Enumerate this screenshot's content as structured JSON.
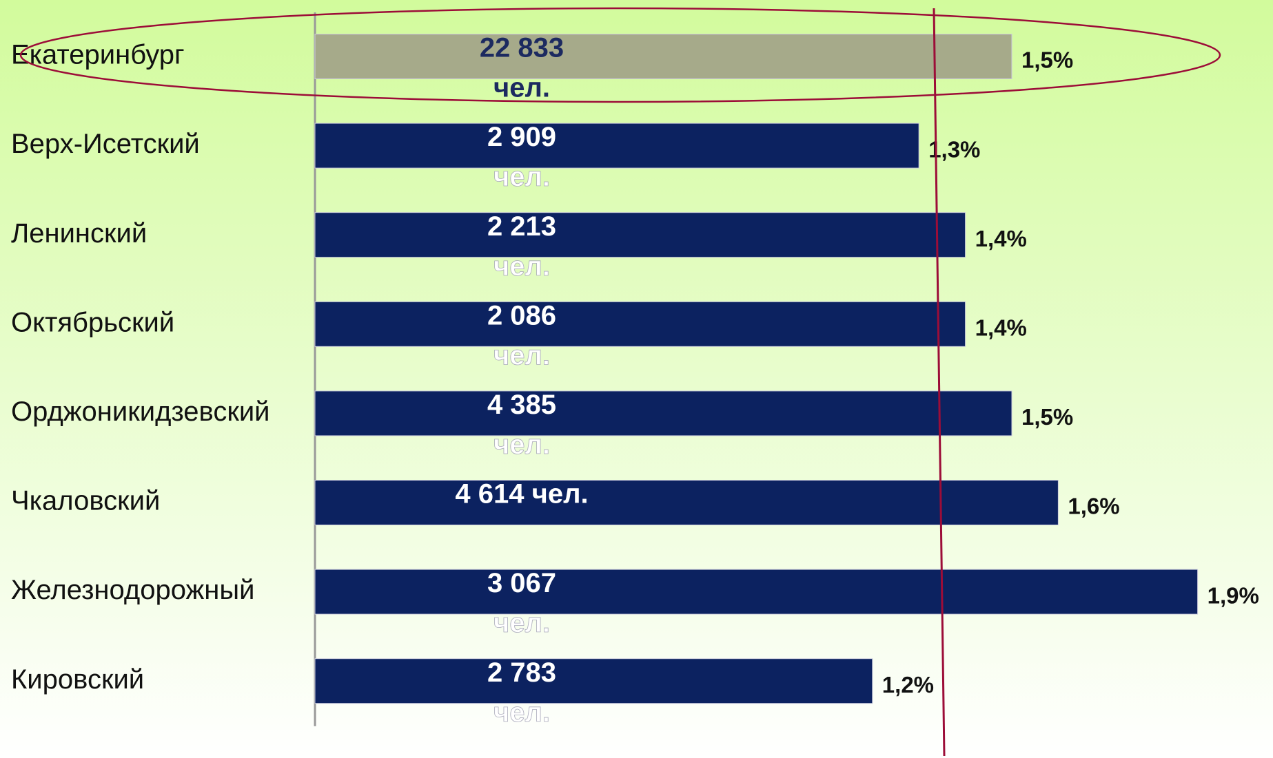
{
  "chart_data": {
    "type": "bar",
    "orientation": "horizontal",
    "categories": [
      "Екатеринбург",
      "Верх-Исетский",
      "Ленинский",
      "Октябрьский",
      "Орджоникидзевский",
      "Чкаловский",
      "Железнодорожный",
      "Кировский"
    ],
    "values": [
      1.5,
      1.3,
      1.4,
      1.4,
      1.5,
      1.6,
      1.9,
      1.2
    ],
    "value_labels": [
      "1,5%",
      "1,3%",
      "1,4%",
      "1,4%",
      "1,5%",
      "1,6%",
      "1,9%",
      "1,2%"
    ],
    "count_labels": [
      [
        "22 833",
        "чел."
      ],
      [
        "2 909",
        "чел."
      ],
      [
        "2 213",
        "чел."
      ],
      [
        "2 086",
        "чел."
      ],
      [
        "4 385",
        "чел."
      ],
      [
        "4 614 чел."
      ],
      [
        "3 067",
        "чел."
      ],
      [
        "2 783",
        "чел."
      ]
    ],
    "colors": [
      "#a6aa8a",
      "#0c2260",
      "#0c2260",
      "#0c2260",
      "#0c2260",
      "#0c2260",
      "#0c2260",
      "#0c2260"
    ],
    "xlim": [
      0,
      2
    ]
  }
}
